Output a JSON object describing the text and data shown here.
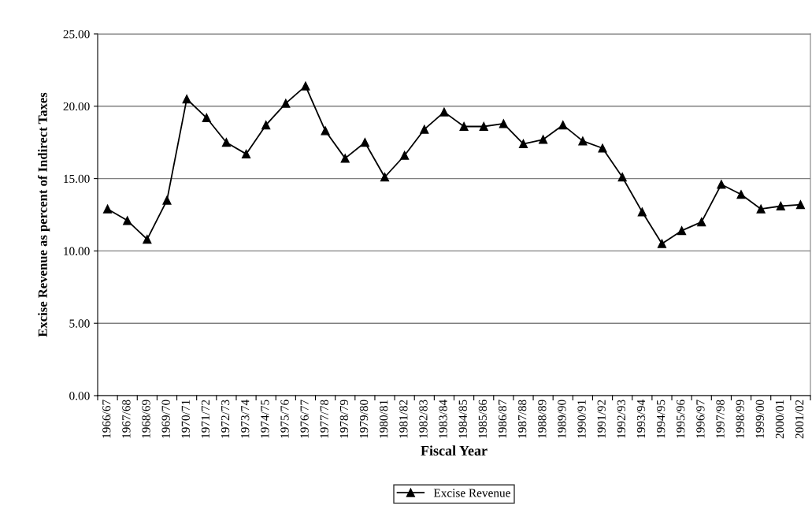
{
  "chart_data": {
    "type": "line",
    "xlabel": "Fiscal Year",
    "ylabel": "Excise Revenue as percent of Indirect Taxes",
    "categories": [
      "1966/67",
      "1967/68",
      "1968/69",
      "1969/70",
      "1970/71",
      "1971/72",
      "1972/73",
      "1973/74",
      "1974/75",
      "1975/76",
      "1976/77",
      "1977/78",
      "1978/79",
      "1979/80",
      "1980/81",
      "1981/82",
      "1982/83",
      "1983/84",
      "1984/85",
      "1985/86",
      "1986/87",
      "1987/88",
      "1988/89",
      "1989/90",
      "1990/91",
      "1991/92",
      "1992/93",
      "1993/94",
      "1994/95",
      "1995/96",
      "1996/97",
      "1997/98",
      "1998/99",
      "1999/00",
      "2000/01",
      "2001/02"
    ],
    "series": [
      {
        "name": "Excise Revenue",
        "color": "#000000",
        "values": [
          12.9,
          12.1,
          10.8,
          13.5,
          20.5,
          19.2,
          17.5,
          16.7,
          18.7,
          20.2,
          21.4,
          18.3,
          16.4,
          17.5,
          15.1,
          16.6,
          18.4,
          19.6,
          18.6,
          18.6,
          18.8,
          17.4,
          17.7,
          18.7,
          17.6,
          17.1,
          15.1,
          12.7,
          10.5,
          11.4,
          12.0,
          14.6,
          13.9,
          12.9,
          13.1,
          13.2
        ]
      }
    ],
    "ylim": [
      0,
      25
    ],
    "yticks": [
      {
        "value": 0,
        "label": "0.00"
      },
      {
        "value": 5,
        "label": "5.00"
      },
      {
        "value": 10,
        "label": "10.00"
      },
      {
        "value": 15,
        "label": "15.00"
      },
      {
        "value": 20,
        "label": "20.00"
      },
      {
        "value": 25,
        "label": "25.00"
      }
    ],
    "grid": "y",
    "legend": "bottom",
    "marker": "triangle",
    "line_style": "solid"
  }
}
